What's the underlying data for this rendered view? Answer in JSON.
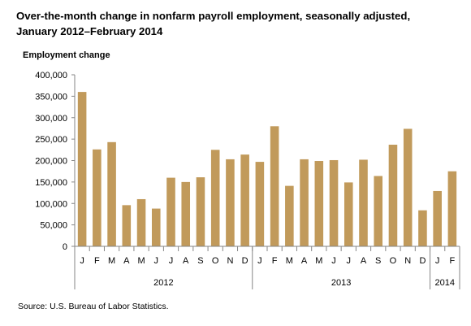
{
  "chart_data": {
    "type": "bar",
    "title_line1": "Over-the-month change in nonfarm payroll employment, seasonally adjusted,",
    "title_line2": "January 2012–February 2014",
    "ylabel": "Employment change",
    "xlabel": "",
    "ylim": [
      0,
      400000
    ],
    "yticks": [
      "0",
      "50,000",
      "100,000",
      "150,000",
      "200,000",
      "250,000",
      "300,000",
      "350,000",
      "400,000"
    ],
    "grid": false,
    "legend": "none",
    "bar_color": "#C19A5B",
    "axis_color": "#868686",
    "categories": [
      "J",
      "F",
      "M",
      "A",
      "M",
      "J",
      "J",
      "A",
      "S",
      "O",
      "N",
      "D",
      "J",
      "F",
      "M",
      "A",
      "M",
      "J",
      "J",
      "A",
      "S",
      "O",
      "N",
      "D",
      "J",
      "F"
    ],
    "year_groups": [
      {
        "label": "2012",
        "count": 12
      },
      {
        "label": "2013",
        "count": 12
      },
      {
        "label": "2014",
        "count": 2
      }
    ],
    "values": [
      360000,
      226000,
      243000,
      96000,
      110000,
      88000,
      160000,
      150000,
      161000,
      225000,
      203000,
      214000,
      197000,
      280000,
      141000,
      203000,
      199000,
      201000,
      149000,
      202000,
      164000,
      237000,
      274000,
      84000,
      129000,
      175000
    ],
    "source": "Source: U.S. Bureau of Labor Statistics."
  }
}
